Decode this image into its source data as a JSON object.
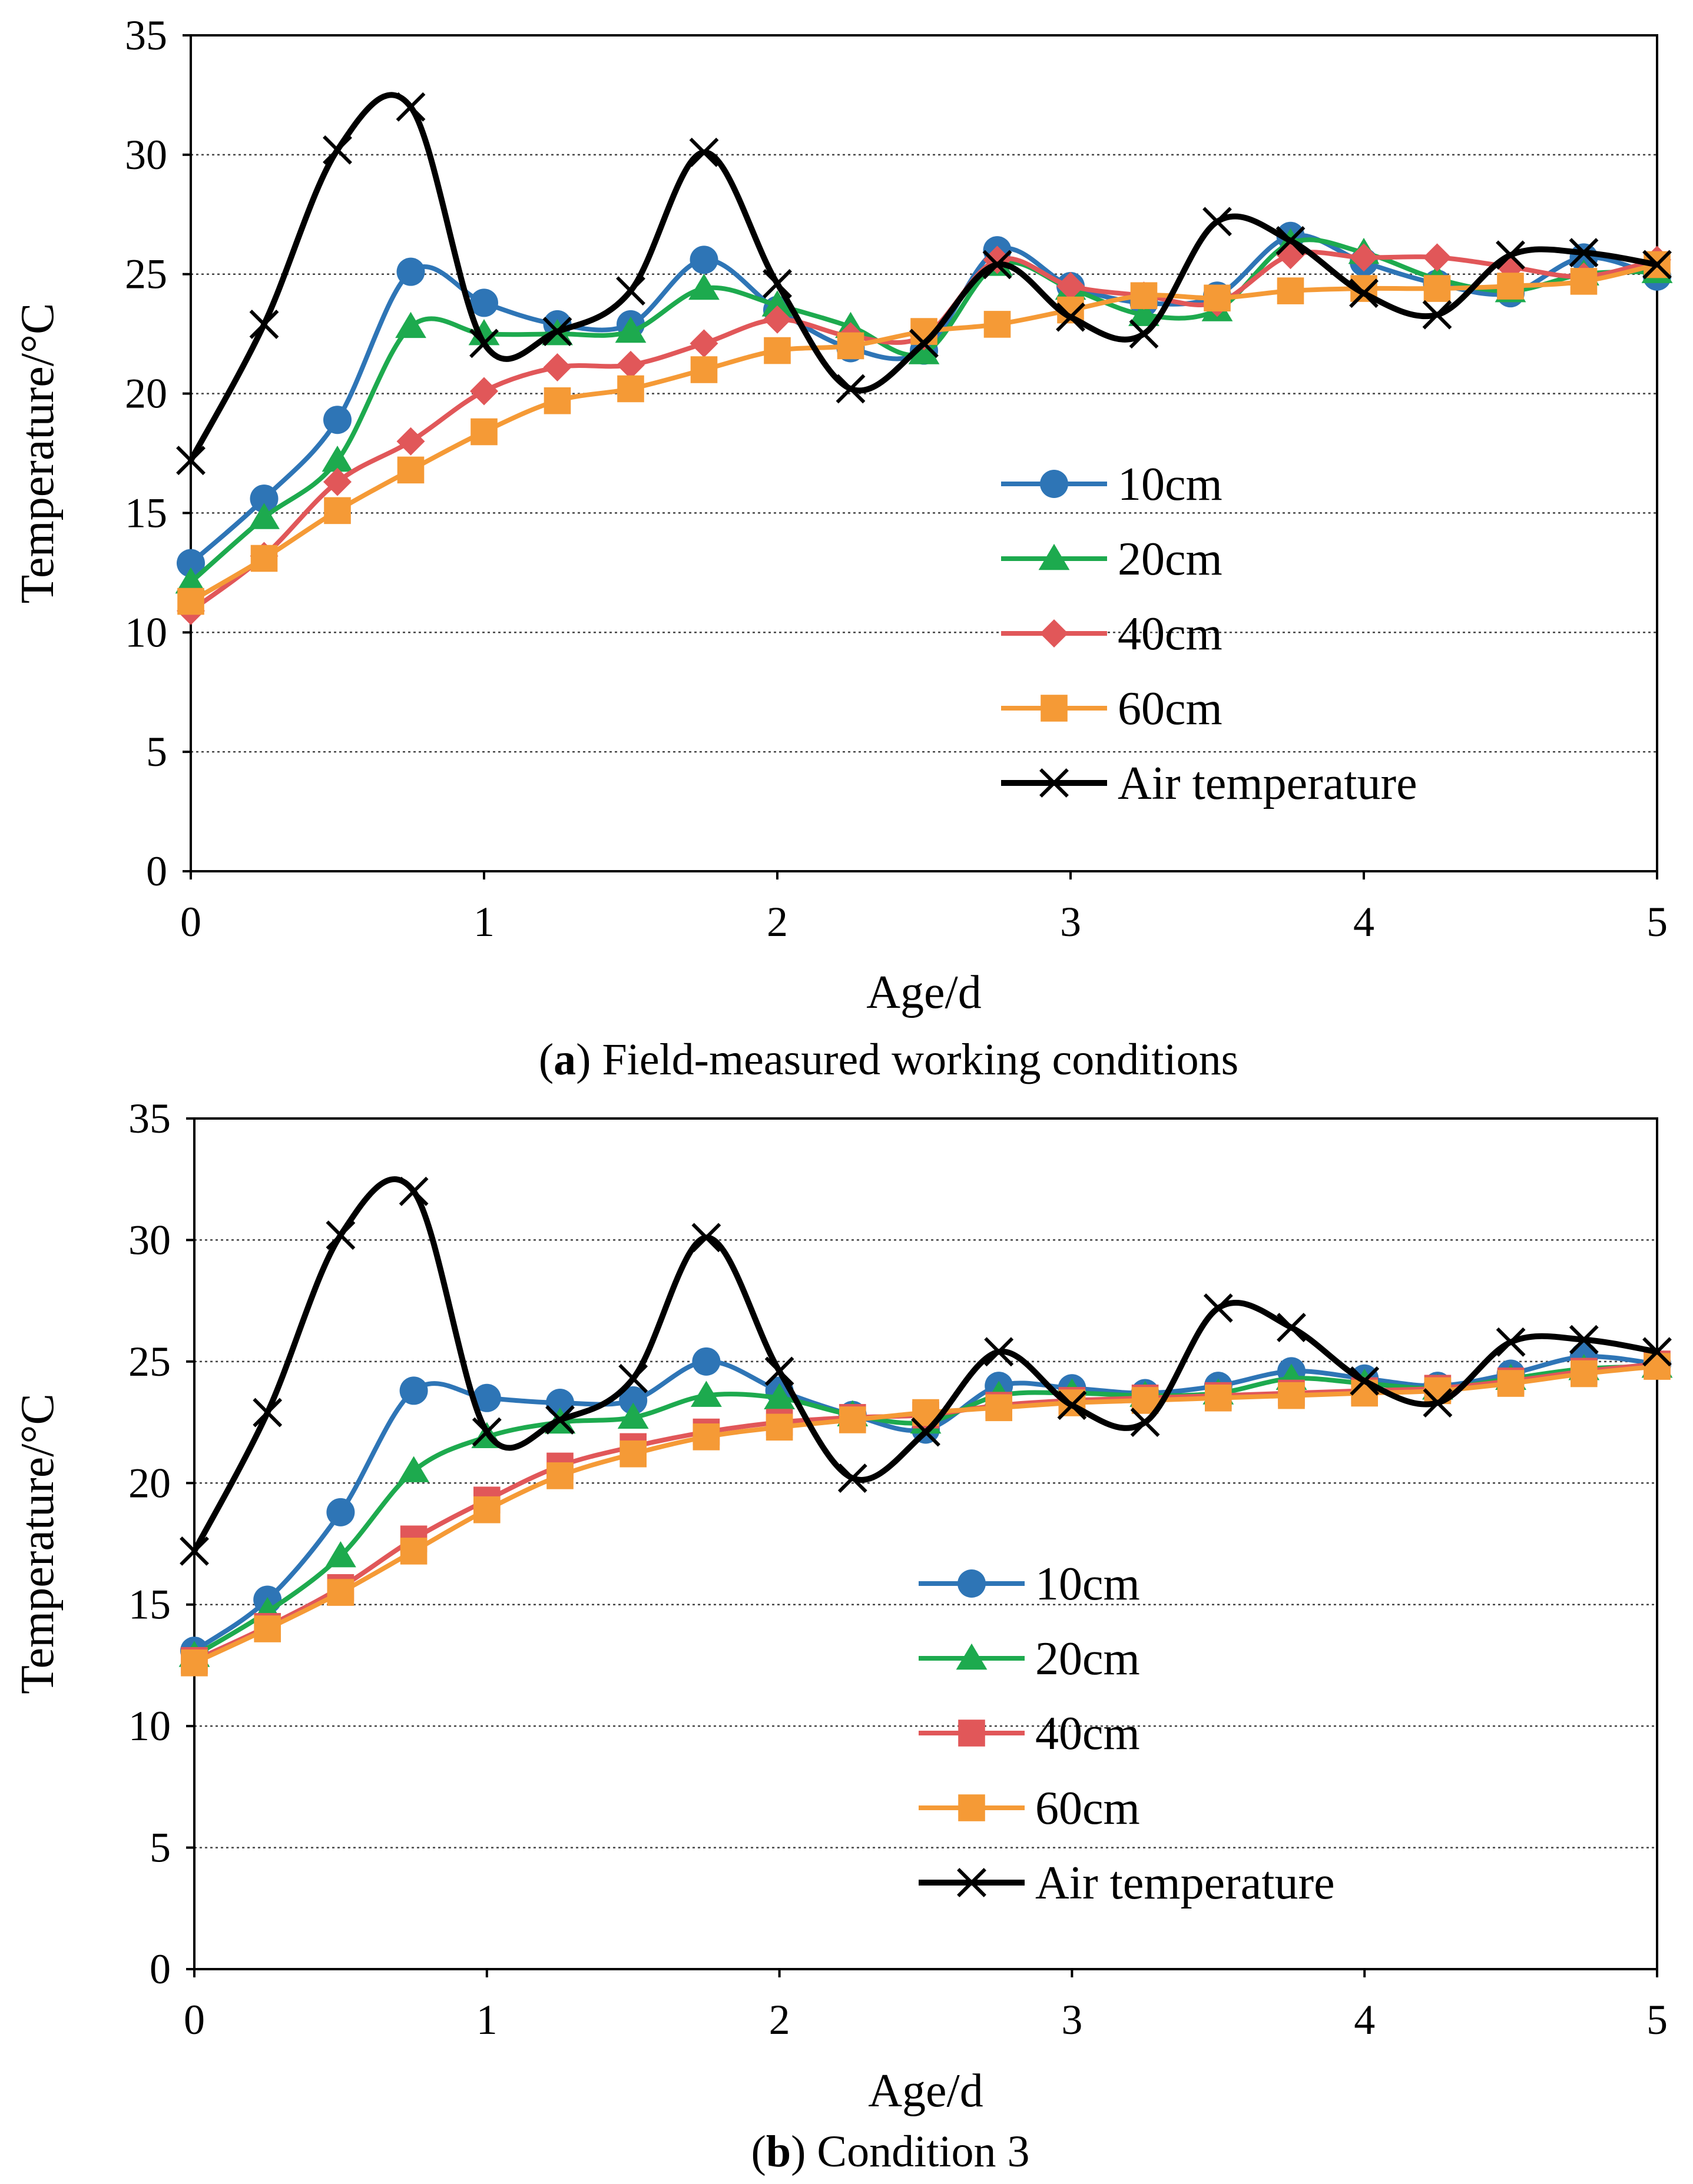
{
  "chart_data": [
    {
      "type": "line",
      "caption_prefix": "(",
      "caption_bold": "a",
      "caption_rest": ") Field-measured working conditions",
      "xlabel": "Age/d",
      "ylabel": "Temperature/°C",
      "xlim": [
        0,
        5
      ],
      "ylim": [
        0,
        35
      ],
      "xticks": [
        "0",
        "1",
        "2",
        "3",
        "4",
        "5"
      ],
      "yticks": [
        "0",
        "5",
        "10",
        "15",
        "20",
        "25",
        "30",
        "35"
      ],
      "grid": "horizontal dotted",
      "legend_position": "lower-right",
      "x": [
        0,
        0.25,
        0.5,
        0.75,
        1,
        1.25,
        1.5,
        1.75,
        2,
        2.25,
        2.5,
        2.75,
        3,
        3.25,
        3.5,
        3.75,
        4,
        4.25,
        4.5,
        4.75,
        5
      ],
      "series": [
        {
          "name": "10cm",
          "color": "#2E75B6",
          "marker": "circle",
          "values": [
            12.9,
            15.6,
            18.9,
            25.1,
            23.8,
            22.9,
            22.9,
            25.6,
            23.5,
            21.9,
            21.8,
            26.0,
            24.5,
            23.8,
            24.1,
            26.6,
            25.5,
            24.6,
            24.2,
            25.7,
            24.9
          ]
        },
        {
          "name": "20cm",
          "color": "#1DAA4E",
          "marker": "triangle",
          "values": [
            12.1,
            14.8,
            17.2,
            22.8,
            22.5,
            22.5,
            22.6,
            24.4,
            23.7,
            22.8,
            21.7,
            25.4,
            24.4,
            23.3,
            23.5,
            26.3,
            25.9,
            24.8,
            24.3,
            25.0,
            25.1
          ]
        },
        {
          "name": "40cm",
          "color": "#E15759",
          "marker": "diamond",
          "values": [
            10.9,
            13.2,
            16.3,
            18.0,
            20.1,
            21.1,
            21.2,
            22.1,
            23.1,
            22.4,
            22.4,
            25.6,
            24.5,
            24.1,
            23.8,
            25.8,
            25.7,
            25.7,
            25.3,
            24.9,
            25.6
          ]
        },
        {
          "name": "60cm",
          "color": "#F59A36",
          "marker": "square",
          "values": [
            11.3,
            13.1,
            15.1,
            16.8,
            18.4,
            19.7,
            20.2,
            21.0,
            21.8,
            22.0,
            22.6,
            22.9,
            23.5,
            24.1,
            24.0,
            24.3,
            24.4,
            24.4,
            24.5,
            24.7,
            25.4
          ]
        },
        {
          "name": "Air temperature",
          "color": "#000000",
          "marker": "x",
          "values": [
            17.2,
            22.9,
            30.2,
            32.0,
            22.1,
            22.6,
            24.3,
            30.1,
            24.6,
            20.2,
            22.1,
            25.4,
            23.2,
            22.5,
            27.2,
            26.4,
            24.2,
            23.3,
            25.8,
            25.9,
            25.4
          ]
        }
      ]
    },
    {
      "type": "line",
      "caption_prefix": "(",
      "caption_bold": "b",
      "caption_rest": ") Condition 3",
      "xlabel": "Age/d",
      "ylabel": "Temperature/°C",
      "xlim": [
        0,
        5
      ],
      "ylim": [
        0,
        35
      ],
      "xticks": [
        "0",
        "1",
        "2",
        "3",
        "4",
        "5"
      ],
      "yticks": [
        "0",
        "5",
        "10",
        "15",
        "20",
        "25",
        "30",
        "35"
      ],
      "grid": "horizontal dotted",
      "legend_position": "lower-right",
      "x": [
        0,
        0.25,
        0.5,
        0.75,
        1,
        1.25,
        1.5,
        1.75,
        2,
        2.25,
        2.5,
        2.75,
        3,
        3.25,
        3.5,
        3.75,
        4,
        4.25,
        4.5,
        4.75,
        5
      ],
      "series": [
        {
          "name": "10cm",
          "color": "#2E75B6",
          "marker": "circle",
          "values": [
            13.1,
            15.2,
            18.8,
            23.8,
            23.5,
            23.3,
            23.4,
            25.0,
            23.8,
            22.8,
            22.2,
            24.0,
            23.9,
            23.7,
            24.0,
            24.6,
            24.3,
            24.0,
            24.5,
            25.2,
            24.9
          ]
        },
        {
          "name": "20cm",
          "color": "#1DAA4E",
          "marker": "triangle",
          "values": [
            12.9,
            14.7,
            17.0,
            20.5,
            21.9,
            22.5,
            22.7,
            23.6,
            23.5,
            22.8,
            22.5,
            23.6,
            23.7,
            23.6,
            23.7,
            24.3,
            24.1,
            23.9,
            24.3,
            24.7,
            24.8
          ]
        },
        {
          "name": "40cm",
          "color": "#E15759",
          "marker": "square",
          "values": [
            12.7,
            14.1,
            15.7,
            17.7,
            19.3,
            20.7,
            21.5,
            22.1,
            22.5,
            22.7,
            22.8,
            23.2,
            23.4,
            23.5,
            23.6,
            23.7,
            23.8,
            23.9,
            24.2,
            24.6,
            24.9
          ]
        },
        {
          "name": "60cm",
          "color": "#F59A36",
          "marker": "square",
          "values": [
            12.6,
            14.0,
            15.5,
            17.2,
            18.9,
            20.3,
            21.2,
            21.9,
            22.3,
            22.6,
            22.9,
            23.1,
            23.3,
            23.4,
            23.5,
            23.6,
            23.7,
            23.8,
            24.1,
            24.5,
            24.8
          ]
        },
        {
          "name": "Air temperature",
          "color": "#000000",
          "marker": "x",
          "values": [
            17.2,
            22.9,
            30.2,
            32.0,
            22.1,
            22.6,
            24.3,
            30.1,
            24.6,
            20.2,
            22.1,
            25.4,
            23.2,
            22.5,
            27.2,
            26.4,
            24.2,
            23.3,
            25.8,
            25.9,
            25.4
          ]
        }
      ]
    }
  ]
}
